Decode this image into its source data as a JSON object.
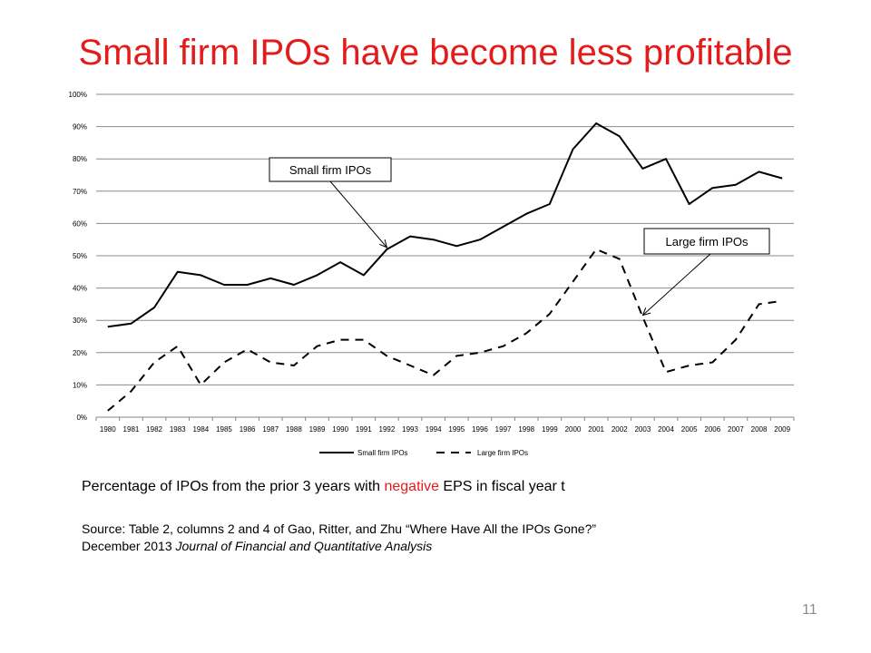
{
  "slide": {
    "title": "Small firm IPOs have become less profitable",
    "caption_before": "Percentage of IPOs from the prior 3 years with ",
    "caption_emph": "negative",
    "caption_after": " EPS in fiscal year t",
    "source_line1": "Source: Table 2, columns 2 and 4 of Gao, Ritter, and Zhu “Where Have All the IPOs Gone?”",
    "source_line2_plain": "December 2013 ",
    "source_line2_italic": "Journal of Financial and Quantitative Analysis",
    "page_number": "11",
    "emphasis_color": "#e31b1b"
  },
  "chart_data": {
    "type": "line",
    "x": [
      1980,
      1981,
      1982,
      1983,
      1984,
      1985,
      1986,
      1987,
      1988,
      1989,
      1990,
      1991,
      1992,
      1993,
      1994,
      1995,
      1996,
      1997,
      1998,
      1999,
      2000,
      2001,
      2002,
      2003,
      2004,
      2005,
      2006,
      2007,
      2008,
      2009
    ],
    "x_tick_labels": [
      "1980",
      "1981",
      "1982",
      "1983",
      "1984",
      "1985",
      "1986",
      "1987",
      "1988",
      "1989",
      "1990",
      "1991",
      "1992",
      "1993",
      "1994",
      "1995",
      "1996",
      "1997",
      "1998",
      "1999",
      "2000",
      "2001",
      "2002",
      "2003",
      "2004",
      "2005",
      "2006",
      "2007",
      "2008",
      "2009"
    ],
    "series": [
      {
        "name": "Small firm IPOs",
        "style": "solid",
        "values": [
          28,
          29,
          34,
          45,
          44,
          41,
          41,
          43,
          41,
          44,
          48,
          44,
          52,
          56,
          55,
          53,
          55,
          59,
          63,
          66,
          83,
          91,
          87,
          77,
          80,
          66,
          71,
          72,
          76,
          74
        ]
      },
      {
        "name": "Large firm IPOs",
        "style": "dashed",
        "values": [
          2,
          8,
          17,
          22,
          10,
          17,
          21,
          17,
          16,
          22,
          24,
          24,
          19,
          16,
          13,
          19,
          20,
          22,
          26,
          32,
          42,
          52,
          49,
          31,
          14,
          16,
          17,
          24,
          35,
          36
        ]
      }
    ],
    "ylim": [
      0,
      100
    ],
    "y_tick_labels": [
      "0%",
      "10%",
      "20%",
      "30%",
      "40%",
      "50%",
      "60%",
      "70%",
      "80%",
      "90%",
      "100%"
    ],
    "grid": "horizontal",
    "legend": "bottom",
    "annotations": [
      {
        "text": "Small firm IPOs",
        "points_to_year": 1992,
        "series": "Small firm IPOs"
      },
      {
        "text": "Large firm IPOs",
        "points_to_year": 2003,
        "series": "Large firm IPOs"
      }
    ]
  }
}
